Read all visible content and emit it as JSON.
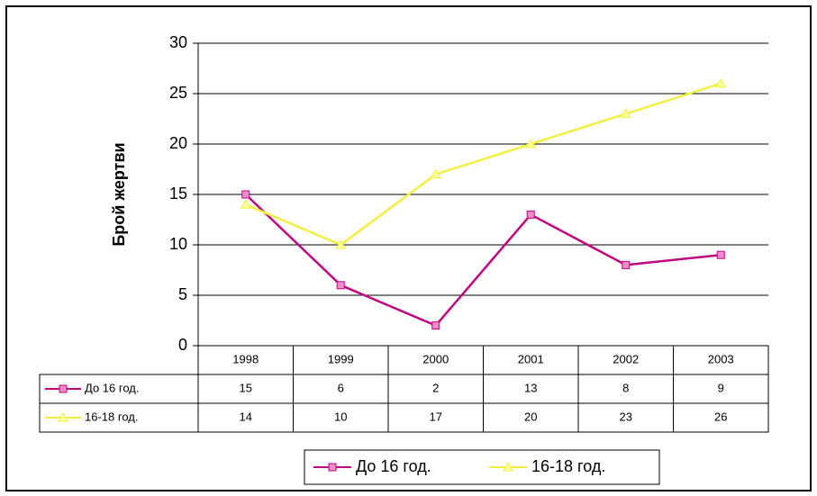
{
  "chart_data": {
    "type": "line",
    "y_label": "Брой жертви",
    "categories": [
      "1998",
      "1999",
      "2000",
      "2001",
      "2002",
      "2003"
    ],
    "series": [
      {
        "name": "До 16 год.",
        "color": "#c0057f",
        "marker": "square",
        "marker_color": "#f08cc8",
        "values": [
          15,
          6,
          2,
          13,
          8,
          9
        ]
      },
      {
        "name": "16-18 год.",
        "color": "#f0f040",
        "marker": "triangle",
        "marker_color": "#ffffa0",
        "values": [
          14,
          10,
          17,
          20,
          23,
          26
        ]
      }
    ],
    "ylim": [
      0,
      30
    ],
    "yticks": [
      0,
      5,
      10,
      15,
      20,
      25,
      30
    ],
    "grid": true,
    "legend": "bottom"
  }
}
